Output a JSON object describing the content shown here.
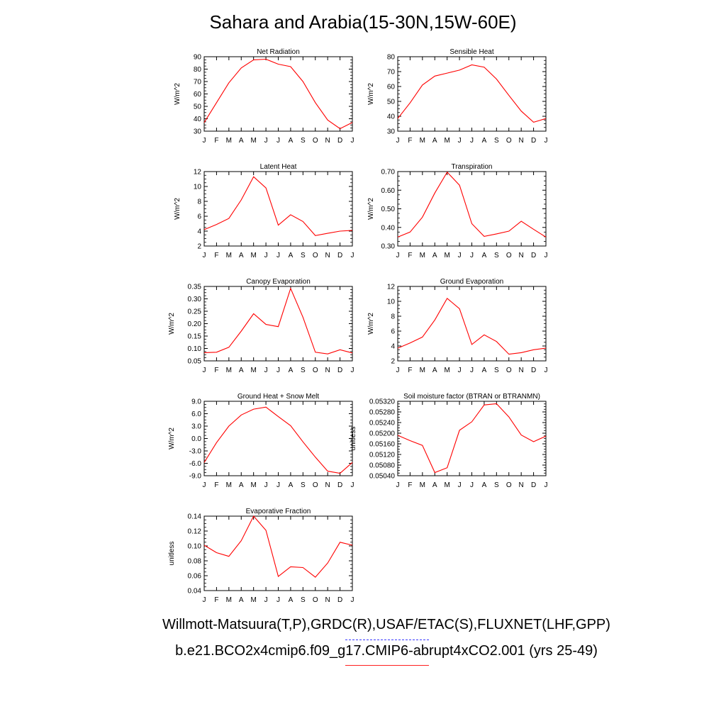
{
  "figure": {
    "title": "Sahara and Arabia(15-30N,15W-60E)",
    "legend_obs": "Willmott-Matsuura(T,P),GRDC(R),USAF/ETAC(S),FLUXNET(LHF,GPP)",
    "legend_model": "b.e21.BCO2x4cmip6.f09_g17.CMIP6-abrupt4xCO2.001 (yrs 25-49)",
    "colors": {
      "model_line": "#ff0000",
      "obs_key": "#3a3aff"
    }
  },
  "chart_data": [
    {
      "type": "line",
      "title": "Net Radiation",
      "ylabel": "W/m^2",
      "categories": [
        "J",
        "F",
        "M",
        "A",
        "M",
        "J",
        "J",
        "A",
        "S",
        "O",
        "N",
        "D",
        "J"
      ],
      "ylim": [
        30,
        90
      ],
      "yticks": [
        "30",
        "40",
        "50",
        "60",
        "70",
        "80",
        "90"
      ],
      "grid": false,
      "series": [
        {
          "values": [
            37,
            53,
            69,
            81,
            87.5,
            88,
            84,
            82,
            70,
            53,
            39,
            32,
            37
          ]
        }
      ]
    },
    {
      "type": "line",
      "title": "Sensible Heat",
      "ylabel": "W/m^2",
      "categories": [
        "J",
        "F",
        "M",
        "A",
        "M",
        "J",
        "J",
        "A",
        "S",
        "O",
        "N",
        "D",
        "J"
      ],
      "ylim": [
        30,
        80
      ],
      "yticks": [
        "30",
        "40",
        "50",
        "60",
        "70",
        "80"
      ],
      "grid": false,
      "series": [
        {
          "values": [
            38.5,
            49,
            61,
            67,
            69,
            71,
            74.5,
            73,
            65,
            54,
            43.5,
            36,
            38.5
          ]
        }
      ]
    },
    {
      "type": "line",
      "title": "Latent Heat",
      "ylabel": "W/m^2",
      "categories": [
        "J",
        "F",
        "M",
        "A",
        "M",
        "J",
        "J",
        "A",
        "S",
        "O",
        "N",
        "D",
        "J"
      ],
      "ylim": [
        2,
        12
      ],
      "yticks": [
        "2",
        "4",
        "6",
        "8",
        "10",
        "12"
      ],
      "grid": false,
      "series": [
        {
          "values": [
            4.2,
            4.9,
            5.7,
            8.2,
            11.3,
            9.8,
            4.8,
            6.2,
            5.3,
            3.4,
            3.7,
            4.0,
            4.1
          ]
        }
      ]
    },
    {
      "type": "line",
      "title": "Transpiration",
      "ylabel": "W/m^2",
      "categories": [
        "J",
        "F",
        "M",
        "A",
        "M",
        "J",
        "J",
        "A",
        "S",
        "O",
        "N",
        "D",
        "J"
      ],
      "ylim": [
        0.3,
        0.7
      ],
      "yticks": [
        "0.30",
        "0.40",
        "0.50",
        "0.60",
        "0.70"
      ],
      "grid": false,
      "series": [
        {
          "values": [
            0.348,
            0.375,
            0.455,
            0.585,
            0.697,
            0.627,
            0.42,
            0.352,
            0.365,
            0.38,
            0.433,
            0.39,
            0.348
          ]
        }
      ]
    },
    {
      "type": "line",
      "title": "Canopy Evaporation",
      "ylabel": "W/m^2",
      "categories": [
        "J",
        "F",
        "M",
        "A",
        "M",
        "J",
        "J",
        "A",
        "S",
        "O",
        "N",
        "D",
        "J"
      ],
      "ylim": [
        0.05,
        0.35
      ],
      "yticks": [
        "0.05",
        "0.10",
        "0.15",
        "0.20",
        "0.25",
        "0.30",
        "0.35"
      ],
      "grid": false,
      "series": [
        {
          "values": [
            0.083,
            0.085,
            0.105,
            0.17,
            0.24,
            0.197,
            0.188,
            0.342,
            0.226,
            0.085,
            0.078,
            0.095,
            0.082
          ]
        }
      ]
    },
    {
      "type": "line",
      "title": "Ground Evaporation",
      "ylabel": "W/m^2",
      "categories": [
        "J",
        "F",
        "M",
        "A",
        "M",
        "J",
        "J",
        "A",
        "S",
        "O",
        "N",
        "D",
        "J"
      ],
      "ylim": [
        2,
        12
      ],
      "yticks": [
        "2",
        "4",
        "6",
        "8",
        "10",
        "12"
      ],
      "grid": false,
      "series": [
        {
          "values": [
            3.7,
            4.4,
            5.2,
            7.5,
            10.4,
            9.0,
            4.2,
            5.5,
            4.6,
            2.9,
            3.1,
            3.5,
            3.7
          ]
        }
      ]
    },
    {
      "type": "line",
      "title": "Ground Heat + Snow Melt",
      "ylabel": "W/m^2",
      "categories": [
        "J",
        "F",
        "M",
        "A",
        "M",
        "J",
        "J",
        "A",
        "S",
        "O",
        "N",
        "D",
        "J"
      ],
      "ylim": [
        -9,
        9
      ],
      "yticks": [
        "-9.0",
        "-6.0",
        "-3.0",
        "0.0",
        "3.0",
        "6.0",
        "9.0"
      ],
      "grid": false,
      "series": [
        {
          "values": [
            -5.8,
            -1.0,
            3.0,
            5.7,
            7.1,
            7.6,
            5.3,
            3.1,
            -0.8,
            -4.5,
            -7.9,
            -8.4,
            -5.8
          ]
        }
      ]
    },
    {
      "type": "line",
      "title": "Soil moisture factor (BTRAN or BTRANMN)",
      "ylabel": "unitless",
      "categories": [
        "J",
        "F",
        "M",
        "A",
        "M",
        "J",
        "J",
        "A",
        "S",
        "O",
        "N",
        "D",
        "J"
      ],
      "ylim": [
        0.0504,
        0.0532
      ],
      "yticks": [
        "0.05040",
        "0.05080",
        "0.05120",
        "0.05160",
        "0.05200",
        "0.05240",
        "0.05280",
        "0.05320"
      ],
      "grid": false,
      "series": [
        {
          "values": [
            0.05192,
            0.05172,
            0.05154,
            0.05052,
            0.0507,
            0.05211,
            0.05243,
            0.05306,
            0.05311,
            0.05261,
            0.05193,
            0.05168,
            0.05189
          ]
        }
      ]
    },
    {
      "type": "line",
      "title": "Evaporative Fraction",
      "ylabel": "unitless",
      "categories": [
        "J",
        "F",
        "M",
        "A",
        "M",
        "J",
        "J",
        "A",
        "S",
        "O",
        "N",
        "D",
        "J"
      ],
      "ylim": [
        0.04,
        0.14
      ],
      "yticks": [
        "0.04",
        "0.06",
        "0.08",
        "0.10",
        "0.12",
        "0.14"
      ],
      "grid": false,
      "series": [
        {
          "values": [
            0.101,
            0.091,
            0.086,
            0.107,
            0.14,
            0.121,
            0.059,
            0.072,
            0.071,
            0.058,
            0.077,
            0.105,
            0.101
          ]
        }
      ]
    }
  ]
}
